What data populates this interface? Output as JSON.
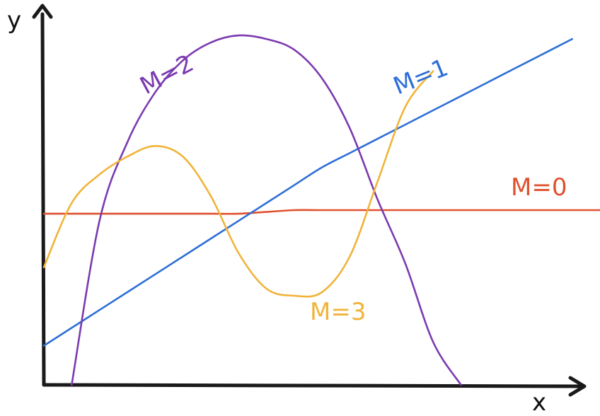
{
  "chart_data": {
    "type": "line",
    "xlabel": "x",
    "ylabel": "y",
    "xlim": [
      0,
      1
    ],
    "ylim": [
      0,
      1
    ],
    "grid": false,
    "x": [
      0.0,
      0.05,
      0.1,
      0.15,
      0.2,
      0.25,
      0.3,
      0.35,
      0.4,
      0.45,
      0.5,
      0.55,
      0.6,
      0.65,
      0.7,
      0.75,
      0.8,
      0.85,
      0.9,
      0.95,
      1.0
    ],
    "series": [
      {
        "name": "M=0",
        "color": "#e0502d",
        "values": [
          0.48,
          0.48,
          0.48,
          0.48,
          0.48,
          0.48,
          0.48,
          0.48,
          0.485,
          0.49,
          0.49,
          0.49,
          0.49,
          0.49,
          0.49,
          0.49,
          0.49,
          0.49,
          0.49,
          0.49,
          0.49
        ]
      },
      {
        "name": "M=1",
        "color": "#2e6fd6",
        "values": [
          0.11,
          0.16,
          0.21,
          0.26,
          0.31,
          0.36,
          0.41,
          0.46,
          0.51,
          0.56,
          0.61,
          0.65,
          0.69,
          0.73,
          0.77,
          0.81,
          0.85,
          0.89,
          0.93,
          0.97,
          null
        ]
      },
      {
        "name": "M=2",
        "color": "#7b3bb0",
        "values": [
          null,
          0.0,
          0.46,
          0.68,
          0.82,
          0.91,
          0.96,
          0.98,
          0.97,
          0.94,
          0.86,
          0.72,
          0.52,
          0.34,
          0.12,
          0.0,
          null,
          null,
          null,
          null,
          null
        ]
      },
      {
        "name": "M=3",
        "color": "#f0b43a",
        "values": [
          0.33,
          0.51,
          0.59,
          0.64,
          0.67,
          0.64,
          0.53,
          0.37,
          0.27,
          0.25,
          0.26,
          0.36,
          0.57,
          0.78,
          0.88,
          null,
          null,
          null,
          null,
          null,
          null
        ]
      }
    ],
    "annotations": [
      "M=0",
      "M=1",
      "M=2",
      "M=3"
    ]
  }
}
